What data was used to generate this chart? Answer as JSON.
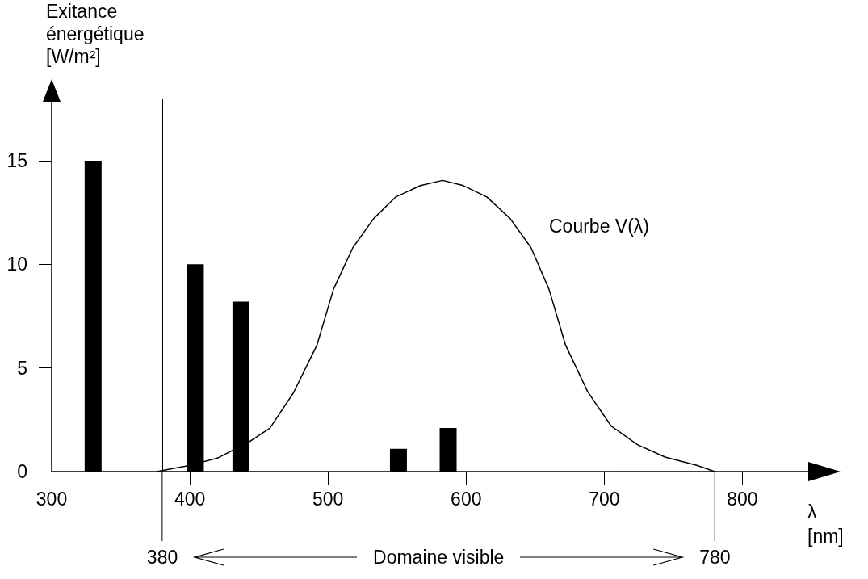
{
  "chart_data": {
    "type": "bar",
    "ylabel": "Exitance énergétique [W/m²]",
    "xlabel": "λ [nm]",
    "xlim": [
      300,
      850
    ],
    "xticks": [
      300,
      400,
      500,
      600,
      700,
      800
    ],
    "ylim": [
      0,
      18
    ],
    "yticks": [
      0,
      5,
      10,
      15
    ],
    "grid": false,
    "series": [
      {
        "color": "#000000",
        "x": [
          330,
          404,
          437,
          551,
          587
        ],
        "values": [
          15,
          10,
          8.2,
          1.1,
          2.1
        ]
      },
      {
        "type": "line",
        "color": "#000000",
        "marker": "none",
        "x": [
          376,
          397,
          420,
          443.5,
          458,
          475,
          492,
          504,
          518,
          533,
          549,
          567,
          583,
          598,
          615,
          632,
          647,
          660,
          672,
          688,
          705,
          724,
          744,
          767,
          780
        ],
        "values": [
          0,
          0.26,
          0.65,
          1.46,
          2.1,
          3.8,
          6.1,
          8.8,
          10.8,
          12.2,
          13.25,
          13.8,
          14.05,
          13.8,
          13.25,
          12.2,
          10.8,
          8.8,
          6.1,
          3.85,
          2.2,
          1.3,
          0.7,
          0.3,
          0
        ]
      }
    ],
    "ref_lines": [
      {
        "axis": "x",
        "value": 380,
        "label": "380"
      },
      {
        "axis": "x",
        "value": 780,
        "label": "780"
      }
    ],
    "annotations": [
      "Courbe V(λ)",
      "Domaine visible"
    ]
  }
}
